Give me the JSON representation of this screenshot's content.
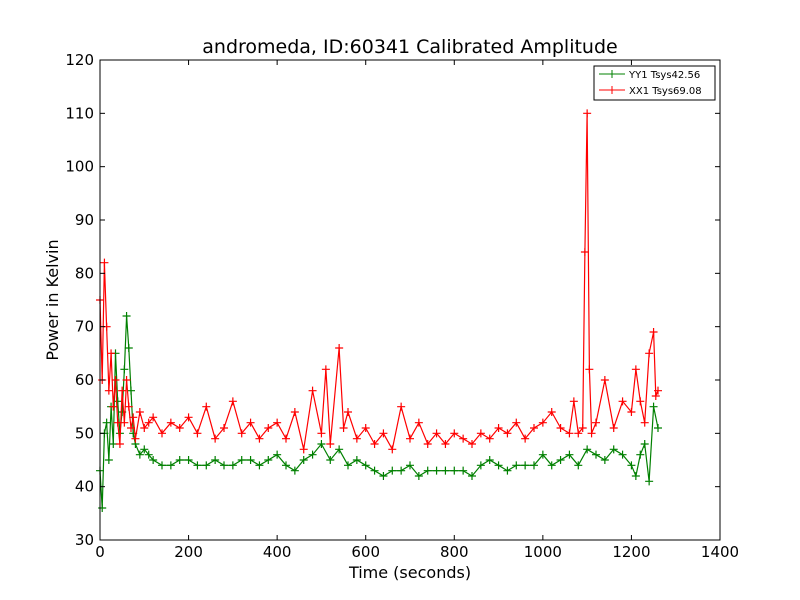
{
  "chart_data": {
    "type": "line",
    "title": "andromeda, ID:60341 Calibrated Amplitude",
    "xlabel": "Time (seconds)",
    "ylabel": "Power in Kelvin",
    "xlim": [
      0,
      1400
    ],
    "ylim": [
      30,
      120
    ],
    "xticks": [
      "0",
      "200",
      "400",
      "600",
      "800",
      "1000",
      "1200",
      "1400"
    ],
    "yticks": [
      "30",
      "40",
      "50",
      "60",
      "70",
      "80",
      "90",
      "100",
      "110",
      "120"
    ],
    "grid": false,
    "legend_position": "top-right",
    "marker": "+",
    "series": [
      {
        "name": "YY1 Tsys42.56",
        "color": "#008000",
        "x": [
          0,
          5,
          10,
          15,
          20,
          25,
          30,
          35,
          40,
          45,
          50,
          55,
          60,
          65,
          70,
          75,
          80,
          90,
          100,
          110,
          120,
          140,
          160,
          180,
          200,
          220,
          240,
          260,
          280,
          300,
          320,
          340,
          360,
          380,
          400,
          420,
          440,
          460,
          480,
          500,
          520,
          540,
          560,
          580,
          600,
          620,
          640,
          660,
          680,
          700,
          720,
          740,
          760,
          780,
          800,
          820,
          840,
          860,
          880,
          900,
          920,
          940,
          960,
          980,
          1000,
          1020,
          1040,
          1060,
          1080,
          1100,
          1120,
          1140,
          1160,
          1180,
          1200,
          1210,
          1220,
          1230,
          1240,
          1250,
          1260
        ],
        "values": [
          43,
          36,
          50,
          52,
          45,
          55,
          48,
          65,
          56,
          50,
          54,
          62,
          72,
          66,
          58,
          50,
          48,
          46,
          47,
          46,
          45,
          44,
          44,
          45,
          45,
          44,
          44,
          45,
          44,
          44,
          45,
          45,
          44,
          45,
          46,
          44,
          43,
          45,
          46,
          48,
          45,
          47,
          44,
          45,
          44,
          43,
          42,
          43,
          43,
          44,
          42,
          43,
          43,
          43,
          43,
          43,
          42,
          44,
          45,
          44,
          43,
          44,
          44,
          44,
          46,
          44,
          45,
          46,
          44,
          47,
          46,
          45,
          47,
          46,
          44,
          42,
          46,
          48,
          41,
          55,
          51
        ]
      },
      {
        "name": "XX1 Tsys69.08",
        "color": "#ff0000",
        "x": [
          0,
          5,
          10,
          15,
          20,
          25,
          30,
          35,
          40,
          45,
          50,
          55,
          60,
          65,
          70,
          75,
          80,
          90,
          100,
          110,
          120,
          140,
          160,
          180,
          200,
          220,
          240,
          260,
          280,
          300,
          320,
          340,
          360,
          380,
          400,
          420,
          440,
          460,
          480,
          500,
          510,
          520,
          540,
          550,
          560,
          580,
          600,
          620,
          640,
          660,
          680,
          700,
          720,
          740,
          760,
          780,
          800,
          820,
          840,
          860,
          880,
          900,
          920,
          940,
          960,
          980,
          1000,
          1020,
          1040,
          1060,
          1070,
          1080,
          1090,
          1095,
          1100,
          1105,
          1110,
          1120,
          1140,
          1160,
          1180,
          1200,
          1210,
          1220,
          1230,
          1240,
          1250,
          1255,
          1260
        ],
        "values": [
          75,
          60,
          82,
          70,
          58,
          65,
          55,
          60,
          52,
          48,
          58,
          52,
          60,
          55,
          51,
          53,
          49,
          54,
          51,
          52,
          53,
          50,
          52,
          51,
          53,
          50,
          55,
          49,
          51,
          56,
          50,
          52,
          49,
          51,
          52,
          49,
          54,
          47,
          58,
          50,
          62,
          48,
          66,
          51,
          54,
          49,
          51,
          48,
          50,
          47,
          55,
          49,
          52,
          48,
          50,
          48,
          50,
          49,
          48,
          50,
          49,
          51,
          50,
          52,
          49,
          51,
          52,
          54,
          51,
          50,
          56,
          50,
          51,
          84,
          110,
          62,
          50,
          52,
          60,
          51,
          56,
          54,
          62,
          56,
          52,
          65,
          69,
          57,
          58
        ]
      }
    ]
  }
}
